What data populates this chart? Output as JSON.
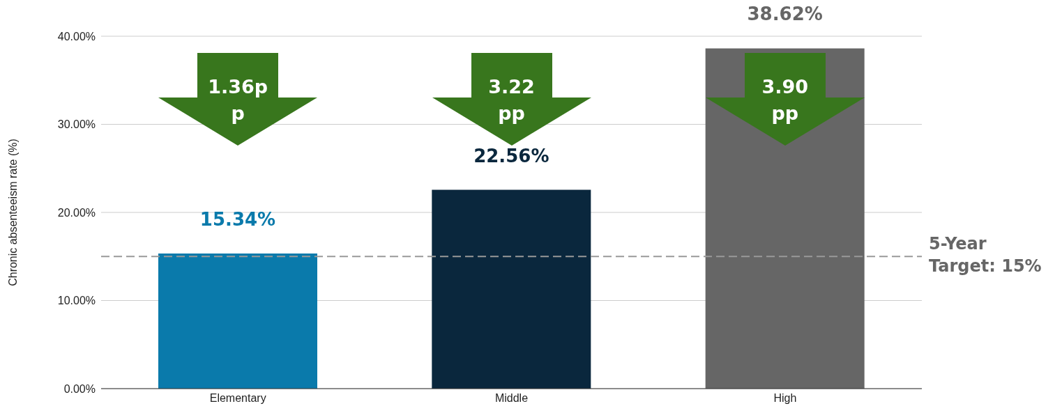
{
  "chart_data": {
    "type": "bar",
    "ylabel": "Chronic absenteeism rate (%)",
    "categories": [
      "Elementary",
      "Middle",
      "High"
    ],
    "values": [
      15.34,
      22.56,
      38.62
    ],
    "colors": [
      "#0a7aab",
      "#0a273d",
      "#666666"
    ],
    "value_labels": [
      "15.34%",
      "22.56%",
      "38.62%"
    ],
    "ylim": [
      0,
      40
    ],
    "yticks": [
      {
        "value": 0,
        "label": "0.00%"
      },
      {
        "value": 10,
        "label": "10.00%"
      },
      {
        "value": 20,
        "label": "20.00%"
      },
      {
        "value": 30,
        "label": "30.00%"
      },
      {
        "value": 40,
        "label": "40.00%"
      }
    ],
    "grid": "y",
    "legend": false,
    "ref_lines": [
      {
        "axis": "y",
        "value": 15,
        "label": "5-Year Target: 15%",
        "color": "#999999",
        "line_style": "dashed"
      }
    ],
    "annotations": [
      "1.36pp",
      "3.22 pp",
      "3.90 pp"
    ]
  }
}
